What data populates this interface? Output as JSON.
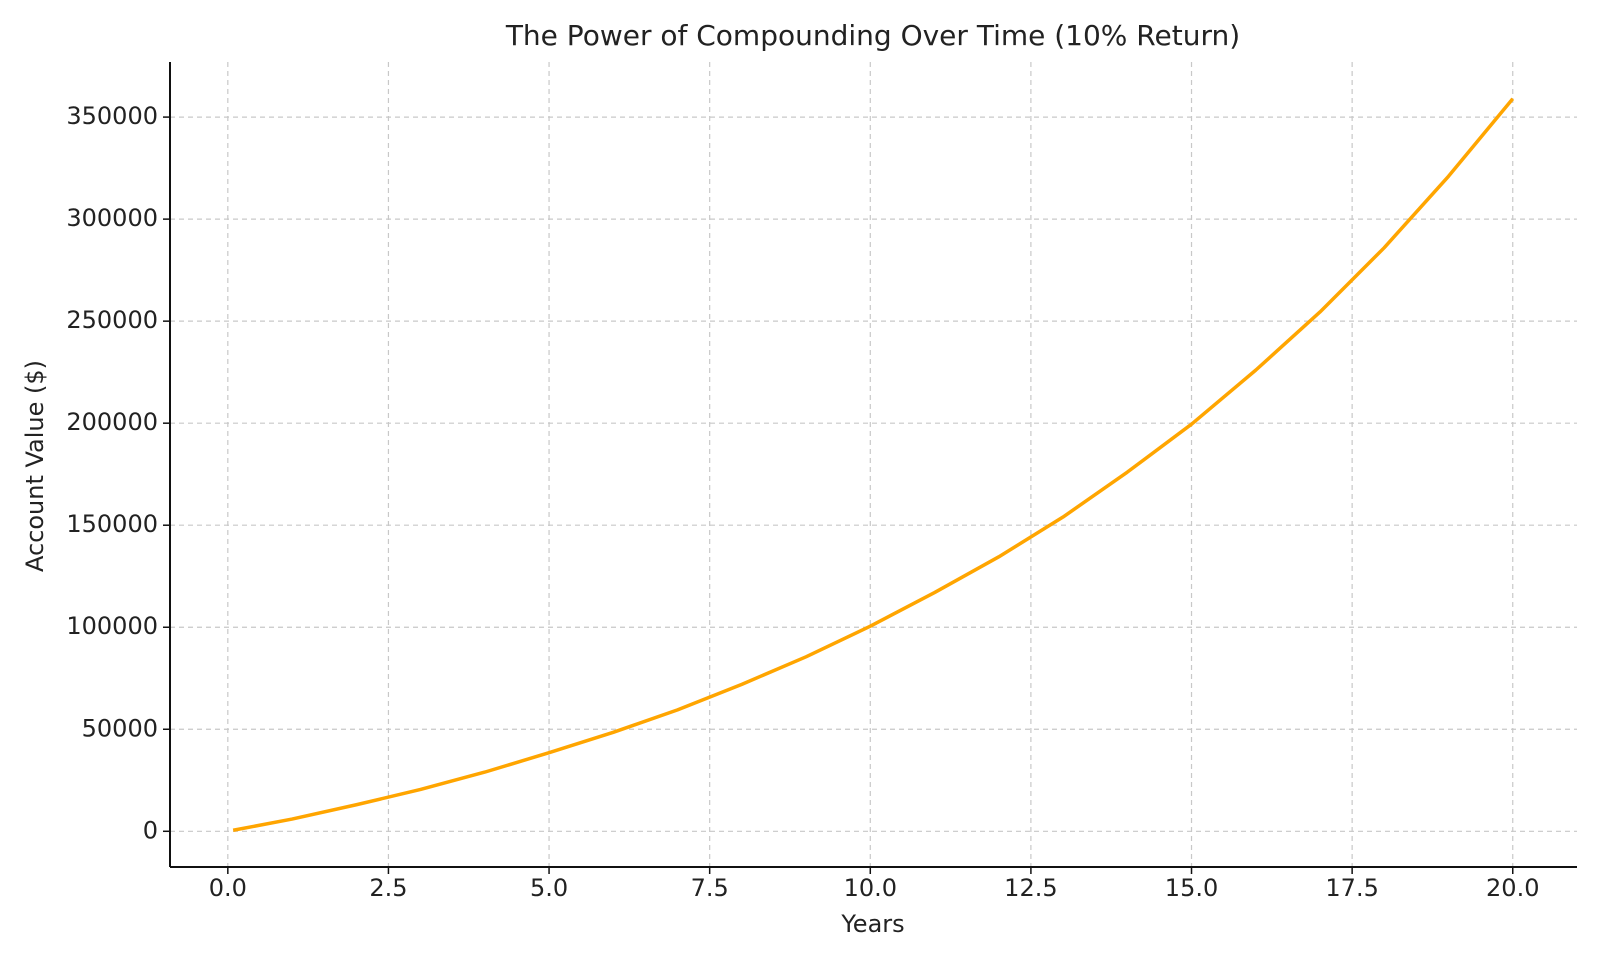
{
  "chart_data": {
    "type": "line",
    "title": "The Power of Compounding Over Time (10% Return)",
    "x_label": "Years",
    "y_label": "Account Value ($)",
    "x": [
      0.083,
      1,
      2,
      3,
      4,
      5,
      6,
      7,
      8,
      9,
      10,
      11,
      12,
      13,
      14,
      15,
      16,
      17,
      18,
      19,
      20
    ],
    "series": [
      {
        "color": "#ffa500",
        "values": [
          500,
          6000,
          13000,
          20500,
          29000,
          38500,
          48500,
          59500,
          72000,
          85500,
          100500,
          117000,
          134500,
          154000,
          176000,
          199500,
          226000,
          254500,
          286000,
          321000,
          359000
        ]
      }
    ],
    "xlim": [
      -0.9,
      21.0
    ],
    "ylim": [
      -17500,
      377000
    ],
    "xticks": [
      {
        "value": 0,
        "label": "0.0"
      },
      {
        "value": 2.5,
        "label": "2.5"
      },
      {
        "value": 5,
        "label": "5.0"
      },
      {
        "value": 7.5,
        "label": "7.5"
      },
      {
        "value": 10,
        "label": "10.0"
      },
      {
        "value": 12.5,
        "label": "12.5"
      },
      {
        "value": 15,
        "label": "15.0"
      },
      {
        "value": 17.5,
        "label": "17.5"
      },
      {
        "value": 20,
        "label": "20.0"
      }
    ],
    "yticks": [
      0,
      50000,
      100000,
      150000,
      200000,
      250000,
      300000,
      350000
    ],
    "grid": true
  }
}
